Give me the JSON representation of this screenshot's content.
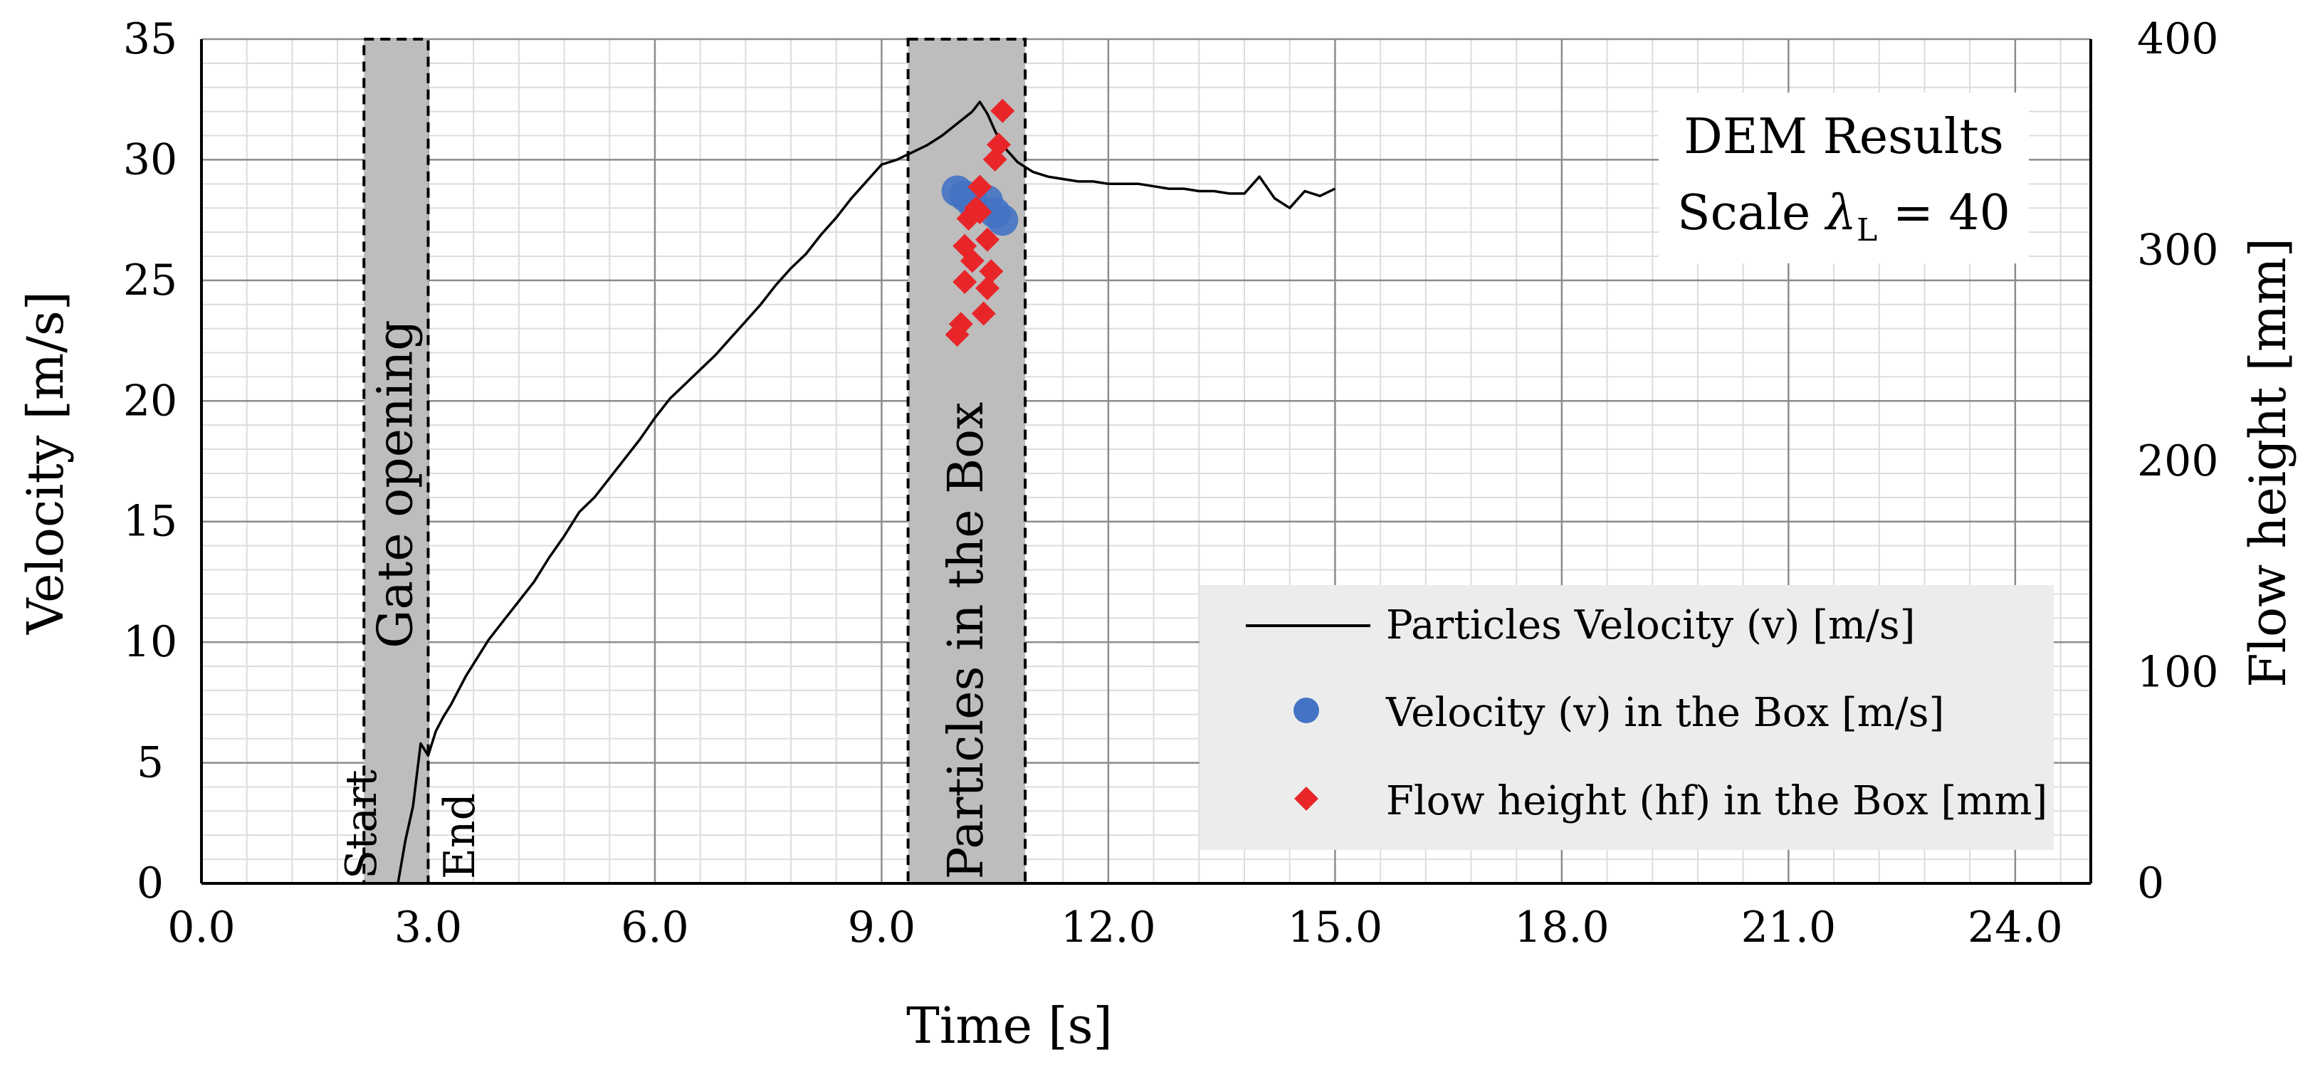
{
  "chart_data": {
    "type": "line",
    "xlabel": "Time [s]",
    "ylabel": "Velocity [m/s]",
    "y2label": "Flow height [mm]",
    "xlim": [
      0,
      25
    ],
    "ylim": [
      0,
      35
    ],
    "y2lim": [
      0,
      400
    ],
    "xticks": [
      "0.0",
      "3.0",
      "6.0",
      "9.0",
      "12.0",
      "15.0",
      "18.0",
      "21.0",
      "24.0"
    ],
    "xtick_values": [
      0,
      3,
      6,
      9,
      12,
      15,
      18,
      21,
      24
    ],
    "yticks": [
      "0",
      "5",
      "10",
      "15",
      "20",
      "25",
      "30",
      "35"
    ],
    "ytick_values": [
      0,
      5,
      10,
      15,
      20,
      25,
      30,
      35
    ],
    "y2ticks": [
      "0",
      "100",
      "200",
      "300",
      "400"
    ],
    "y2tick_values": [
      0,
      100,
      200,
      300,
      400
    ],
    "grid": true,
    "minor_grid": true,
    "legend_position": "bottom-right",
    "results_box": {
      "line1": "DEM Results",
      "line2_prefix": "Scale ",
      "line2_symbol": "λ",
      "line2_sub": "L",
      "line2_suffix": " = 40"
    },
    "shaded_regions": [
      {
        "label": "Gate opening",
        "x_start": 2.15,
        "x_end": 3.0
      },
      {
        "label": "Particles in the Box",
        "x_start": 9.35,
        "x_end": 10.9
      }
    ],
    "annotations": [
      {
        "text": "Start",
        "x": 2.1
      },
      {
        "text": "End",
        "x": 3.4
      }
    ],
    "series": [
      {
        "name": "Particles Velocity (v) [m/s]",
        "kind": "line",
        "axis": "left",
        "color": "#000000",
        "x": [
          2.6,
          2.7,
          2.8,
          2.9,
          3.0,
          3.1,
          3.2,
          3.3,
          3.4,
          3.5,
          3.6,
          3.7,
          3.8,
          4.0,
          4.2,
          4.4,
          4.6,
          4.8,
          5.0,
          5.2,
          5.4,
          5.6,
          5.8,
          6.0,
          6.2,
          6.4,
          6.6,
          6.8,
          7.0,
          7.2,
          7.4,
          7.6,
          7.8,
          8.0,
          8.2,
          8.4,
          8.6,
          8.8,
          9.0,
          9.2,
          9.4,
          9.6,
          9.8,
          10.0,
          10.2,
          10.3,
          10.4,
          10.5,
          10.6,
          10.8,
          11.0,
          11.2,
          11.4,
          11.6,
          11.8,
          12.0,
          12.2,
          12.4,
          12.6,
          12.8,
          13.0,
          13.2,
          13.4,
          13.6,
          13.8,
          14.0,
          14.2,
          14.4,
          14.6,
          14.8,
          15.0
        ],
        "y": [
          0,
          1.8,
          3.2,
          5.8,
          5.3,
          6.3,
          6.9,
          7.4,
          8.0,
          8.6,
          9.1,
          9.6,
          10.1,
          10.9,
          11.7,
          12.5,
          13.5,
          14.4,
          15.4,
          16.0,
          16.8,
          17.6,
          18.4,
          19.3,
          20.1,
          20.7,
          21.3,
          21.9,
          22.6,
          23.3,
          24.0,
          24.8,
          25.5,
          26.1,
          26.9,
          27.6,
          28.4,
          29.1,
          29.8,
          30.0,
          30.3,
          30.6,
          31.0,
          31.5,
          32.0,
          32.4,
          31.9,
          31.2,
          30.6,
          29.9,
          29.5,
          29.3,
          29.2,
          29.1,
          29.1,
          29.0,
          29.0,
          29.0,
          28.9,
          28.8,
          28.8,
          28.7,
          28.7,
          28.6,
          28.6,
          29.3,
          28.4,
          28.0,
          28.7,
          28.5,
          28.8
        ]
      },
      {
        "name": "Velocity (v)  in the Box [m/s]",
        "kind": "scatter",
        "marker": "circle",
        "axis": "left",
        "color": "#4472C4",
        "x": [
          10.0,
          10.1,
          10.2,
          10.4,
          10.5,
          10.6
        ],
        "y": [
          28.7,
          28.5,
          28.2,
          28.3,
          27.8,
          27.5
        ]
      },
      {
        "name": "Flow height (hf) in the Box [mm]",
        "kind": "scatter",
        "marker": "diamond",
        "axis": "right",
        "color": "#E8262A",
        "x": [
          10.0,
          10.05,
          10.1,
          10.15,
          10.2,
          10.25,
          10.3,
          10.35,
          10.4,
          10.45,
          10.5,
          10.55,
          10.6,
          10.1,
          10.3,
          10.4
        ],
        "y": [
          260,
          265,
          285,
          315,
          295,
          320,
          330,
          270,
          282,
          290,
          343,
          350,
          366,
          302,
          318,
          305
        ]
      }
    ]
  }
}
